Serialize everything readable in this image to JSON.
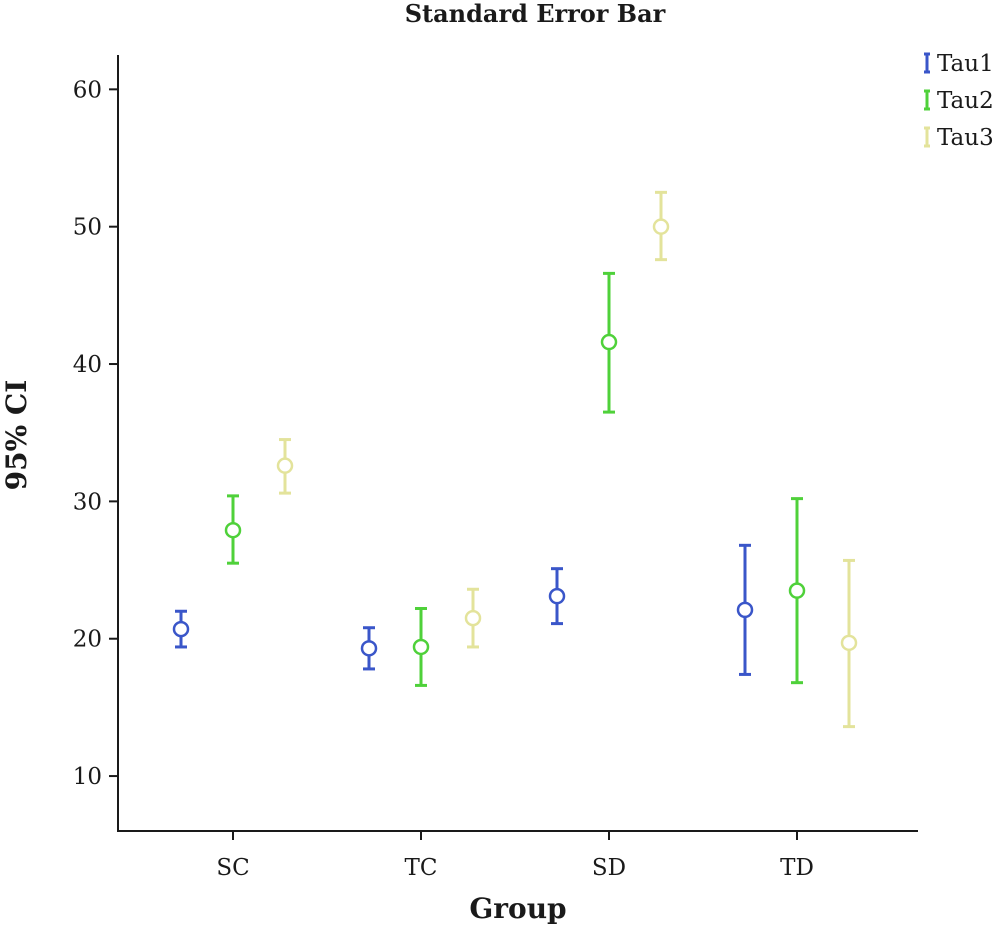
{
  "chart_data": {
    "type": "scatter",
    "title": "Standard Error Bar",
    "xlabel": "Group",
    "ylabel": "95% CI",
    "categories": [
      "SC",
      "TC",
      "SD",
      "TD"
    ],
    "ylim": [
      6,
      62.5
    ],
    "yticks": [
      10,
      20,
      30,
      40,
      50,
      60
    ],
    "grid": false,
    "legend_position": "top-right",
    "series": [
      {
        "name": "Tau1",
        "color": "#3a56c9",
        "values": [
          20.7,
          19.3,
          23.1,
          22.1
        ],
        "lower": [
          19.4,
          17.8,
          21.1,
          17.4
        ],
        "upper": [
          22.0,
          20.8,
          25.1,
          26.8
        ]
      },
      {
        "name": "Tau2",
        "color": "#4fd13a",
        "values": [
          27.9,
          19.4,
          41.6,
          23.5
        ],
        "lower": [
          25.5,
          16.6,
          36.5,
          16.8
        ],
        "upper": [
          30.4,
          22.2,
          46.6,
          30.2
        ]
      },
      {
        "name": "Tau3",
        "color": "#e3e39b",
        "values": [
          32.6,
          21.5,
          50.0,
          19.7
        ],
        "lower": [
          30.6,
          19.4,
          47.6,
          13.6
        ],
        "upper": [
          34.5,
          23.6,
          52.5,
          25.7
        ]
      }
    ]
  }
}
